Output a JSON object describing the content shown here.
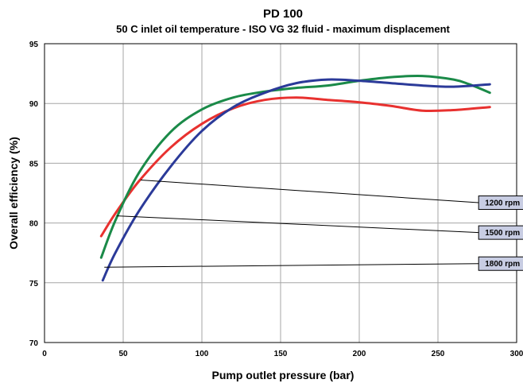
{
  "chart_data": {
    "type": "line",
    "title": "PD 100",
    "subtitle": "50 C inlet oil temperature - ISO VG 32 fluid - maximum displacement",
    "xlabel": "Pump outlet pressure (bar)",
    "ylabel": "Overall efficiency (%)",
    "xlim": [
      0,
      300
    ],
    "ylim": [
      70,
      95
    ],
    "xticks": [
      0,
      50,
      100,
      150,
      200,
      250,
      300
    ],
    "yticks": [
      70,
      75,
      80,
      85,
      90,
      95
    ],
    "xtick_labels": [
      "0",
      "50",
      "100",
      "150",
      "200",
      "250",
      "300"
    ],
    "ytick_labels": [
      "70",
      "75",
      "80",
      "85",
      "90",
      "95"
    ],
    "grid": true,
    "legend": "callouts",
    "series": [
      {
        "name": "1200 rpm",
        "color": "#e8312f",
        "x": [
          36,
          45,
          60,
          80,
          100,
          120,
          140,
          160,
          180,
          200,
          220,
          240,
          260,
          283
        ],
        "y": [
          78.9,
          80.8,
          83.5,
          86.3,
          88.3,
          89.6,
          90.3,
          90.5,
          90.3,
          90.1,
          89.8,
          89.4,
          89.45,
          89.7
        ]
      },
      {
        "name": "1500 rpm",
        "color": "#1a8a48",
        "x": [
          36,
          45,
          60,
          80,
          100,
          120,
          140,
          160,
          180,
          200,
          220,
          240,
          260,
          270,
          283
        ],
        "y": [
          77.1,
          80.2,
          84.2,
          87.6,
          89.5,
          90.5,
          91.0,
          91.3,
          91.5,
          91.9,
          92.2,
          92.3,
          92.0,
          91.6,
          90.9
        ]
      },
      {
        "name": "1800 rpm",
        "color": "#2b3a99",
        "x": [
          37,
          45,
          60,
          80,
          100,
          120,
          140,
          160,
          180,
          200,
          220,
          240,
          260,
          283
        ],
        "y": [
          75.2,
          77.5,
          81.0,
          84.7,
          87.7,
          89.7,
          90.9,
          91.7,
          92.0,
          91.9,
          91.7,
          91.5,
          91.4,
          91.6
        ]
      }
    ],
    "callouts": [
      {
        "label": "1200 rpm",
        "target": [
          61,
          83.6
        ],
        "box_center": [
          291,
          81.7
        ]
      },
      {
        "label": "1500 rpm",
        "target": [
          46,
          80.6
        ],
        "box_center": [
          291,
          79.2
        ]
      },
      {
        "label": "1800 rpm",
        "target": [
          38,
          76.3
        ],
        "box_center": [
          291,
          76.6
        ]
      }
    ]
  }
}
